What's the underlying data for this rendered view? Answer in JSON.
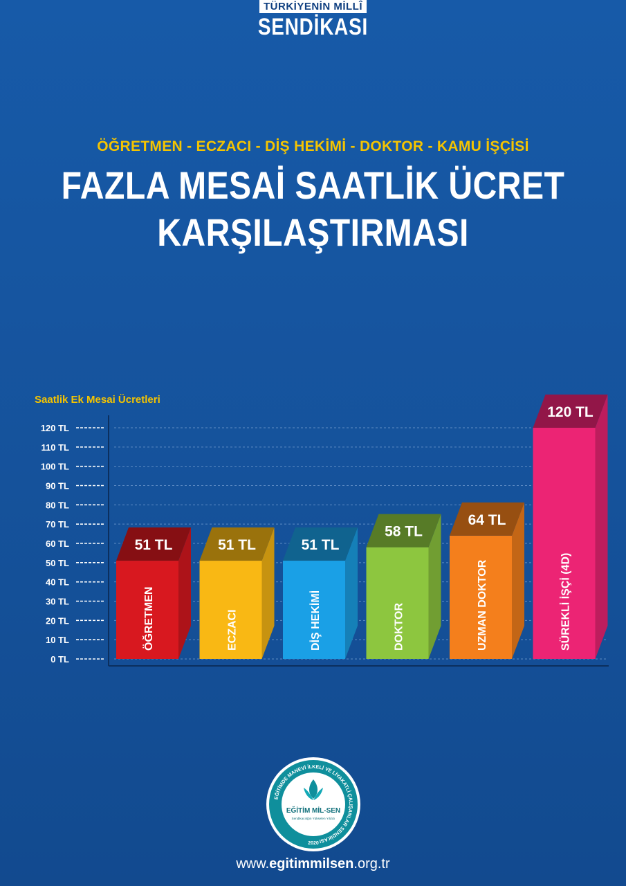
{
  "brand": {
    "top": "TÜRKİYENİN MİLLÎ",
    "main": "SENDİKASI"
  },
  "subtitle": "ÖĞRETMEN - ECZACI - DİŞ HEKİMİ - DOKTOR - KAMU İŞÇİSİ",
  "title_line1": "FAZLA MESAİ SAATLİK ÜCRET",
  "title_line2": "KARŞILAŞTIRMASI",
  "chart_data": {
    "type": "bar",
    "title": "Saatlik Ek Mesai Ücretleri",
    "categories": [
      "ÖĞRETMEN",
      "ECZACI",
      "DİŞ HEKİMİ",
      "DOKTOR",
      "UZMAN DOKTOR",
      "SÜREKLİ İŞÇİ (4D)"
    ],
    "values": [
      51,
      51,
      51,
      58,
      64,
      120
    ],
    "data_labels": [
      "51 TL",
      "51 TL",
      "51 TL",
      "58 TL",
      "64 TL",
      "120 TL"
    ],
    "colors": [
      "#d8181f",
      "#f9b814",
      "#1aa0e6",
      "#8dc63f",
      "#f47f1c",
      "#ec2474"
    ],
    "y_ticks": [
      0,
      10,
      20,
      30,
      40,
      50,
      60,
      70,
      80,
      90,
      100,
      110,
      120
    ],
    "y_tick_labels": [
      "0 TL",
      "10 TL",
      "20 TL",
      "30 TL",
      "40 TL",
      "50 TL",
      "60 TL",
      "70 TL",
      "80 TL",
      "90 TL",
      "100 TL",
      "110 TL",
      "120 TL"
    ],
    "ylim": [
      0,
      120
    ],
    "grid": true
  },
  "logo": {
    "ring_text": "EĞİTİMDE MANEVİ İLKELİ VE LİYAKATLİ ÇALIŞANLAR SENDİKASI",
    "name": "EĞİTİM MİL-SEN",
    "tagline": "Sendikacılığın Yükselen Yıldızı",
    "year": "2020"
  },
  "website": {
    "prefix": "www.",
    "name": "egitimmilsen",
    "suffix": ".org.tr"
  }
}
